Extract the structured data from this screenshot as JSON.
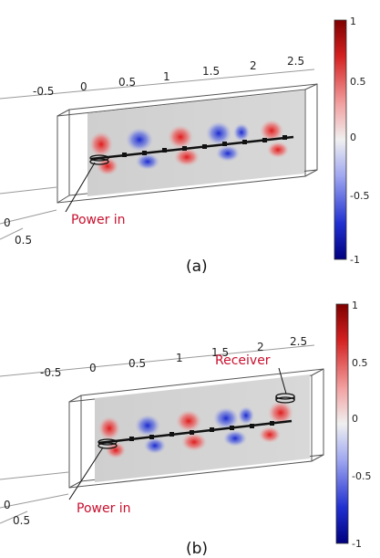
{
  "panels": [
    {
      "caption": "(a)",
      "x_ticks": [
        "-0.5",
        "0",
        "0.5",
        "1",
        "1.5",
        "2",
        "2.5"
      ],
      "y_ticks": [
        "0",
        "0.5"
      ],
      "annotations": [
        {
          "text": "Power in",
          "role": "input"
        }
      ],
      "colorbar": {
        "ticks": [
          "1",
          "0.5",
          "0",
          "-0.5",
          "-1"
        ],
        "max_color": "#7f0000",
        "zero_color": "#f0f0f0",
        "min_color": "#00007f"
      },
      "field_signs": [
        1,
        -1,
        1,
        -1,
        1,
        -1,
        1
      ]
    },
    {
      "caption": "(b)",
      "x_ticks": [
        "-0.5",
        "0",
        "0.5",
        "1",
        "1.5",
        "2",
        "2.5"
      ],
      "y_ticks": [
        "0",
        "0.5"
      ],
      "annotations": [
        {
          "text": "Power in",
          "role": "input"
        },
        {
          "text": "Receiver",
          "role": "output"
        }
      ],
      "colorbar": {
        "ticks": [
          "1",
          "0.5",
          "0",
          "-0.5",
          "-1"
        ],
        "max_color": "#7f0000",
        "zero_color": "#f0f0f0",
        "min_color": "#00007f"
      },
      "field_signs": [
        1,
        -1,
        1,
        -1,
        1,
        -1,
        1
      ]
    }
  ]
}
